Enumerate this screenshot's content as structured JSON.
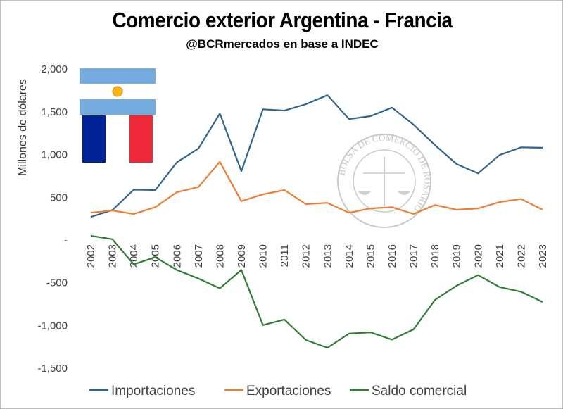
{
  "chart_data": {
    "type": "line",
    "title": "Comercio exterior Argentina - Francia",
    "subtitle": "@BCRmercados en base a INDEC",
    "ylabel": "Millones de dólares",
    "xlabel": "",
    "ylim": [
      -1500,
      2000
    ],
    "y_ticks": [
      -1500,
      -1000,
      -500,
      0,
      500,
      1000,
      1500,
      2000
    ],
    "y_tick_labels": [
      "-1,500",
      "-1,000",
      "-500",
      "-",
      "500",
      "1,000",
      "1,500",
      "2,000"
    ],
    "grid": false,
    "legend": "bottom",
    "categories": [
      "2002",
      "2003",
      "2004",
      "2005",
      "2006",
      "2007",
      "2008",
      "2009",
      "2010",
      "2011",
      "2012",
      "2013",
      "2014",
      "2015",
      "2016",
      "2017",
      "2018",
      "2019",
      "2020",
      "2021",
      "2022",
      "2023"
    ],
    "series": [
      {
        "name": "Importaciones",
        "color": "#2e6490",
        "values": [
          270,
          350,
          590,
          585,
          910,
          1070,
          1480,
          805,
          1530,
          1515,
          1590,
          1695,
          1415,
          1450,
          1550,
          1350,
          1110,
          890,
          780,
          995,
          1085,
          1080
        ]
      },
      {
        "name": "Exportaciones",
        "color": "#ed7d31",
        "values": [
          320,
          345,
          305,
          385,
          560,
          620,
          915,
          455,
          535,
          585,
          420,
          435,
          320,
          370,
          385,
          305,
          410,
          355,
          370,
          445,
          480,
          355
        ]
      },
      {
        "name": "Saldo comercial",
        "color": "#2e7d32",
        "values": [
          50,
          10,
          -285,
          -200,
          -350,
          -450,
          -565,
          -350,
          -995,
          -930,
          -1170,
          -1260,
          -1095,
          -1080,
          -1165,
          -1045,
          -700,
          -535,
          -410,
          -550,
          -605,
          -725
        ]
      }
    ]
  },
  "watermark": {
    "text": "BOLSA DE COMERCIO DE ROSARIO"
  },
  "colors": {
    "arg_blue": "#74acdf",
    "fr_blue": "#002395",
    "fr_red": "#ed2939",
    "sun": "#f6b40e"
  }
}
